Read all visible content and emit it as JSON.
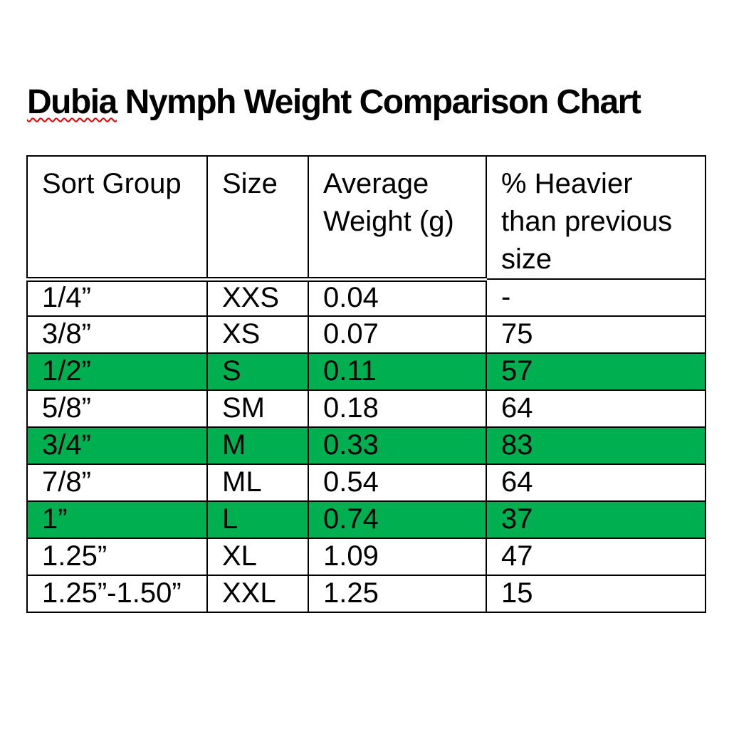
{
  "document": {
    "title_misspelled_word": "Dubia",
    "title_rest": " Nymph Weight Comparison Chart",
    "title_full": "Dubia Nymph Weight Comparison Chart"
  },
  "chart_data": {
    "type": "table",
    "title": "Dubia Nymph Weight Comparison Chart",
    "columns": [
      "Sort Group",
      "Size",
      "Average Weight (g)",
      "% Heavier than previous size"
    ],
    "rows": [
      [
        "1/4”",
        "XXS",
        "0.04",
        "-"
      ],
      [
        "3/8”",
        "XS",
        "0.07",
        "75"
      ],
      [
        "1/2”",
        "S",
        "0.11",
        "57"
      ],
      [
        "5/8”",
        "SM",
        "0.18",
        "64"
      ],
      [
        "3/4”",
        "M",
        "0.33",
        "83"
      ],
      [
        "7/8”",
        "ML",
        "0.54",
        "64"
      ],
      [
        "1”",
        "L",
        "0.74",
        "37"
      ],
      [
        "1.25”",
        "XL",
        "1.09",
        "47"
      ],
      [
        "1.25”-1.50”",
        "XXL",
        "1.25",
        "15"
      ]
    ],
    "highlighted_row_indices": [
      2,
      4,
      6
    ],
    "legend_position": "none",
    "grid": "all-borders"
  },
  "colors": {
    "highlight_green": "#00B050",
    "spellcheck_red": "#e40000",
    "border_black": "#000000",
    "text_black": "#000000",
    "page_background": "#ffffff"
  }
}
